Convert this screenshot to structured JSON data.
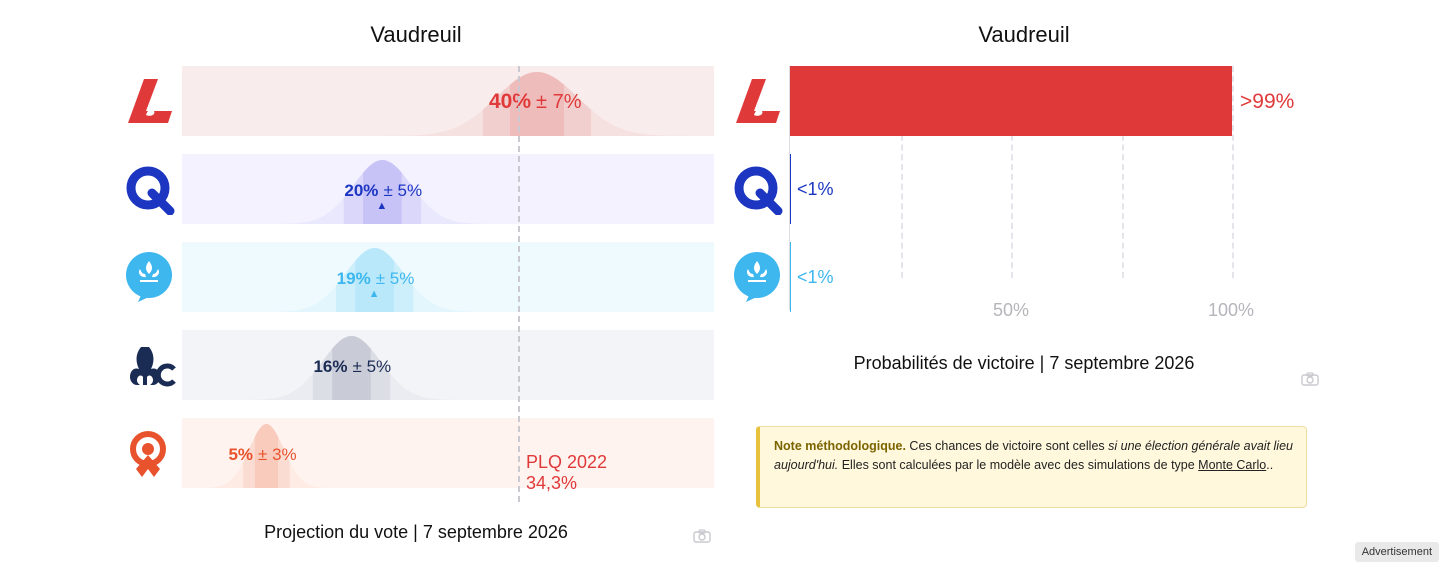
{
  "left_chart": {
    "title": "Vaudreuil",
    "caption": "Projection du vote | 7 septembre 2026"
  },
  "right_chart": {
    "title": "Vaudreuil",
    "caption": "Probabilités de victoire | 7 septembre 2026"
  },
  "parties": [
    {
      "key": "plq",
      "icon": "plq-logo-icon",
      "color": "#e0393a",
      "light": "#f9ecec",
      "range_color": "#f2cfcf",
      "core_color": "#efbcbc"
    },
    {
      "key": "caq",
      "icon": "caq-logo-icon",
      "color": "#1c36c2",
      "light": "#f3f2fe",
      "range_color": "#dbd7fb",
      "core_color": "#c8c3f6"
    },
    {
      "key": "pq",
      "icon": "pq-logo-icon",
      "color": "#3eb7ef",
      "light": "#effafe",
      "range_color": "#cdeffc",
      "core_color": "#b9e8fb"
    },
    {
      "key": "pcq",
      "icon": "pcq-logo-icon",
      "color": "#1b2c54",
      "light": "#f3f4f7",
      "range_color": "#dcdee6",
      "core_color": "#c9ccd7"
    },
    {
      "key": "qs",
      "icon": "qs-logo-icon",
      "color": "#e8532d",
      "light": "#fff3ef",
      "range_color": "#fbdcd2",
      "core_color": "#f8cbbc"
    }
  ],
  "vote_labels": [
    {
      "pct": "40%",
      "margin": "± 7%",
      "arrow": ""
    },
    {
      "pct": "20%",
      "margin": "± 5%",
      "arrow": "▲"
    },
    {
      "pct": "19%",
      "margin": "± 5%",
      "arrow": "▲"
    },
    {
      "pct": "16%",
      "margin": "± 5%",
      "arrow": ""
    },
    {
      "pct": "5%",
      "margin": "± 3%",
      "arrow": ""
    }
  ],
  "reference": {
    "line1": "PLQ 2022",
    "line2": "34,3%",
    "value": 34.3
  },
  "prob_labels": [
    ">99%",
    "<1%",
    "<1%"
  ],
  "axis_ticks": [
    "50%",
    "100%"
  ],
  "note": {
    "title": "Note méthodologique.",
    "text1": " Ces chances de victoire sont celles ",
    "italic": "si une élection générale avait lieu aujourd'hui.",
    "text2": " Elles sont calculées par le modèle avec des simulations de type ",
    "link": "Monte Carlo",
    "text3": ".."
  },
  "ad_label": "Advertisement",
  "chart_data": [
    {
      "type": "bar",
      "title": "Vaudreuil",
      "caption": "Projection du vote | 7 septembre 2026",
      "categories": [
        "PLQ",
        "CAQ",
        "PQ",
        "PCQ",
        "QS"
      ],
      "values": [
        40,
        20,
        19,
        16,
        5
      ],
      "margins": [
        7,
        5,
        5,
        5,
        3
      ],
      "xlim": [
        0,
        60
      ],
      "reference_line": {
        "label": "PLQ 2022 34,3%",
        "value": 34.3
      }
    },
    {
      "type": "bar",
      "title": "Vaudreuil",
      "caption": "Probabilités de victoire | 7 septembre 2026",
      "categories": [
        "PLQ",
        "CAQ",
        "PQ"
      ],
      "values": [
        99.5,
        0.5,
        0.5
      ],
      "labels": [
        ">99%",
        "<1%",
        "<1%"
      ],
      "xlim": [
        0,
        100
      ],
      "xticks": [
        "50%",
        "100%"
      ],
      "grid": true
    }
  ]
}
